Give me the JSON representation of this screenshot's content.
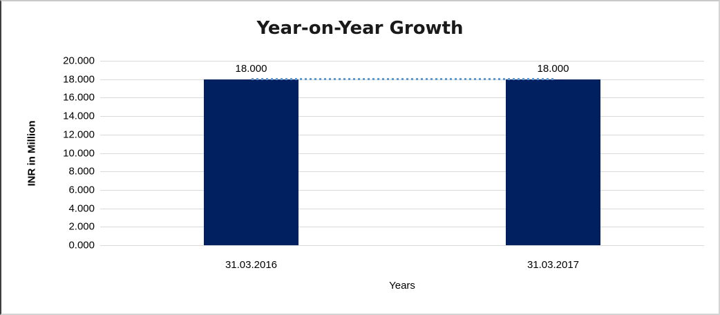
{
  "chart_data": {
    "type": "bar",
    "title": "Year-on-Year Growth",
    "xlabel": "Years",
    "ylabel": "INR in Million",
    "categories": [
      "31.03.2016",
      "31.03.2017"
    ],
    "series": [
      {
        "name": "INR value (bar)",
        "type": "bar",
        "values": [
          18.0,
          18.0
        ],
        "color": "#002060"
      },
      {
        "name": "trend (dotted line)",
        "type": "line",
        "values": [
          18.0,
          18.0
        ],
        "color": "#5b9bd5",
        "style": "dotted"
      }
    ],
    "data_labels": [
      "18.000",
      "18.000"
    ],
    "ylim": [
      0,
      20
    ],
    "ytick_step": 2,
    "yticks": [
      "0.000",
      "2.000",
      "4.000",
      "6.000",
      "8.000",
      "10.000",
      "12.000",
      "14.000",
      "16.000",
      "18.000",
      "20.000"
    ],
    "grid": true,
    "legend": false,
    "gridline_color": "#d9d9d9",
    "text_color": "#000000"
  }
}
